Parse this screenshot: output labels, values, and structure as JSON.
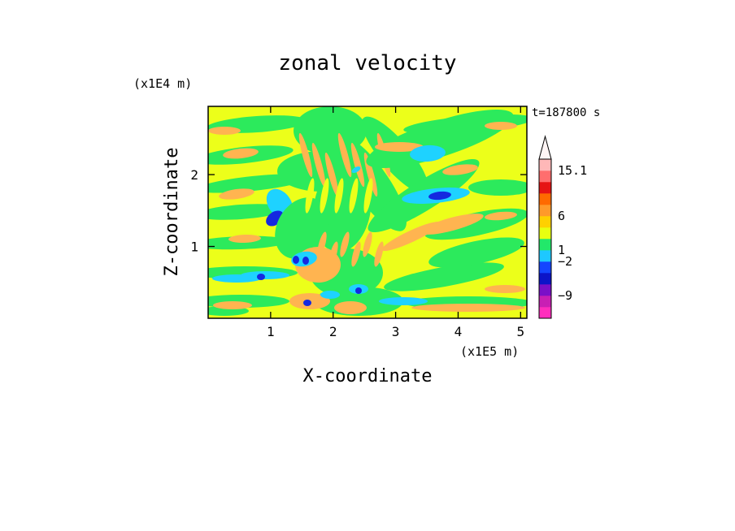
{
  "chart_data": {
    "type": "heatmap",
    "title": "zonal velocity",
    "xlabel": "X-coordinate",
    "ylabel": "Z-coordinate",
    "x_unit": "(x1E5 m)",
    "y_unit": "(x1E4 m)",
    "time_label": "t=187800 s",
    "xlim": [
      0,
      5.1
    ],
    "ylim": [
      0,
      2.95
    ],
    "x_ticks": [
      1,
      2,
      3,
      4,
      5
    ],
    "y_ticks": [
      1,
      2
    ],
    "colorbar": {
      "colors": [
        "#ff2dbd",
        "#c81fb4",
        "#7a10c8",
        "#0c14c8",
        "#1446ff",
        "#1ec8ff",
        "#22e86a",
        "#e8ff10",
        "#ffd000",
        "#ff9a2a",
        "#ff6a00",
        "#e61414",
        "#ff6e6e",
        "#ffb8b8"
      ],
      "labels": [
        {
          "text": "15.1",
          "value": 15.1
        },
        {
          "text": "6",
          "value": 6
        },
        {
          "text": "1",
          "value": 1
        },
        {
          "text": "−2",
          "value": -2
        },
        {
          "text": "−9",
          "value": -9
        }
      ]
    },
    "field_palette": {
      "background": "#ecff1a",
      "green": "#2cea5c",
      "orange": "#ffb450",
      "cyan": "#1ed2ff",
      "blue": "#1428e0"
    }
  }
}
